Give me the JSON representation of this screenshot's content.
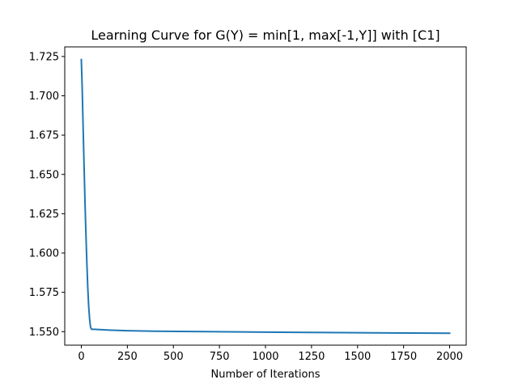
{
  "chart_data": {
    "type": "line",
    "title": "Learning Curve for G(Y) = min[1, max[-1,Y]] with [C1]",
    "xlabel": "Number of Iterations",
    "ylabel": "",
    "xlim": [
      -90,
      2090
    ],
    "ylim": [
      1.5414,
      1.7311
    ],
    "xticks": [
      0,
      250,
      500,
      750,
      1000,
      1250,
      1500,
      1750,
      2000
    ],
    "xtick_labels": [
      "0",
      "250",
      "500",
      "750",
      "1000",
      "1250",
      "1500",
      "1750",
      "2000"
    ],
    "yticks": [
      1.55,
      1.575,
      1.6,
      1.625,
      1.65,
      1.675,
      1.7,
      1.725
    ],
    "ytick_labels": [
      "1.550",
      "1.575",
      "1.600",
      "1.625",
      "1.650",
      "1.675",
      "1.700",
      "1.725"
    ],
    "grid": false,
    "series": [
      {
        "color": "#1f77b4",
        "x": [
          0,
          5,
          10,
          15,
          20,
          25,
          30,
          35,
          40,
          45,
          50,
          55,
          60,
          70,
          100,
          150,
          250,
          400,
          600,
          800,
          1000,
          1250,
          1500,
          1750,
          2000
        ],
        "y": [
          1.723,
          1.704,
          1.679,
          1.655,
          1.632,
          1.612,
          1.594,
          1.578,
          1.566,
          1.558,
          1.553,
          1.5515,
          1.5515,
          1.5515,
          1.5513,
          1.551,
          1.5506,
          1.5503,
          1.5501,
          1.5499,
          1.5497,
          1.5495,
          1.5493,
          1.5491,
          1.549
        ]
      }
    ]
  }
}
